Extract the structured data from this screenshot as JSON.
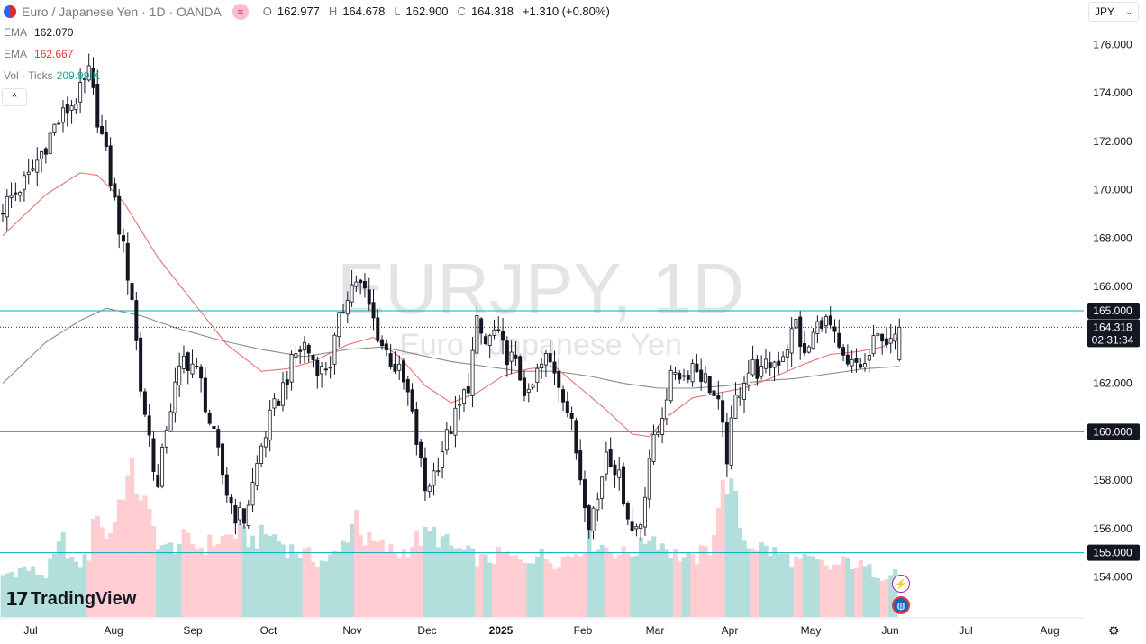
{
  "header": {
    "symbol_title": "Euro / Japanese Yen · 1D · OANDA",
    "badge_glyph": "≈",
    "ohlc": {
      "o_label": "O",
      "o_value": "162.977",
      "h_label": "H",
      "h_value": "164.678",
      "l_label": "L",
      "l_value": "162.900",
      "c_label": "C",
      "c_value": "164.318",
      "change": "+1.310 (+0.80%)"
    }
  },
  "indicators": [
    {
      "label": "EMA",
      "value": "162.070",
      "color": "#787b86"
    },
    {
      "label": "EMA",
      "value": "162.667",
      "color": "#e53935"
    },
    {
      "label": "Vol · Ticks",
      "value": "209.99 K",
      "color": "#26a69a"
    }
  ],
  "currency_button": {
    "label": "JPY",
    "chevron": "⌄"
  },
  "collapse_glyph": "^",
  "watermark": {
    "symbol": "EURJPY, 1D",
    "name": "Euro / Japanese Yen"
  },
  "logo": {
    "mark": "17",
    "text": "TradingView"
  },
  "settings_glyph": "⚙",
  "lightning_glyph": "⚡",
  "colors": {
    "up": "#131722",
    "down": "#131722",
    "ema_fast": "#e57373",
    "ema_slow": "#8d8d8d",
    "hline": "#00acc1",
    "vol_up": "#b2dfdb",
    "vol_down": "#ffcdd2",
    "price_tag_bg": "#131722",
    "level_tag_bg": "#131722"
  },
  "chart_data": {
    "type": "candlestick",
    "symbol": "EURJPY",
    "interval": "1D",
    "exchange": "OANDA",
    "y_axis": {
      "min": 153.2,
      "max": 177.0,
      "ticks": [
        "176.000",
        "174.000",
        "172.000",
        "170.000",
        "168.000",
        "166.000",
        "164.000",
        "162.000",
        "160.000",
        "158.000",
        "156.000",
        "154.000"
      ]
    },
    "x_axis": {
      "labels": [
        "Jul",
        "Aug",
        "Sep",
        "Oct",
        "Nov",
        "Dec",
        "2025",
        "Feb",
        "Mar",
        "Apr",
        "May",
        "Jun",
        "Jul",
        "Aug"
      ]
    },
    "horizontal_levels": [
      {
        "price": 165.0,
        "label": "165.000"
      },
      {
        "price": 160.0,
        "label": "160.000"
      },
      {
        "price": 155.0,
        "label": "155.000"
      }
    ],
    "last_price": {
      "value": "164.318",
      "countdown": "02:31:34"
    },
    "close_path": [
      [
        0,
        169.3
      ],
      [
        6,
        170.5
      ],
      [
        12,
        172.6
      ],
      [
        18,
        174.0
      ],
      [
        20,
        174.8
      ],
      [
        22,
        173.0
      ],
      [
        24,
        171.4
      ],
      [
        28,
        167.5
      ],
      [
        30,
        165.6
      ],
      [
        32,
        161.8
      ],
      [
        34,
        159.8
      ],
      [
        36,
        157.6
      ],
      [
        38,
        160.3
      ],
      [
        40,
        161.8
      ],
      [
        42,
        163.0
      ],
      [
        44,
        162.8
      ],
      [
        46,
        162.0
      ],
      [
        48,
        160.4
      ],
      [
        50,
        159.0
      ],
      [
        52,
        157.5
      ],
      [
        54,
        156.6
      ],
      [
        56,
        156.4
      ],
      [
        58,
        157.8
      ],
      [
        60,
        159.4
      ],
      [
        62,
        160.5
      ],
      [
        64,
        161.4
      ],
      [
        66,
        162.3
      ],
      [
        68,
        163.2
      ],
      [
        70,
        163.6
      ],
      [
        72,
        163.0
      ],
      [
        74,
        162.5
      ],
      [
        76,
        162.9
      ],
      [
        78,
        164.5
      ],
      [
        80,
        165.8
      ],
      [
        82,
        166.3
      ],
      [
        84,
        165.7
      ],
      [
        86,
        164.6
      ],
      [
        88,
        163.6
      ],
      [
        90,
        163.0
      ],
      [
        92,
        162.4
      ],
      [
        94,
        161.5
      ],
      [
        96,
        159.6
      ],
      [
        98,
        157.6
      ],
      [
        100,
        158.3
      ],
      [
        102,
        159.3
      ],
      [
        104,
        160.2
      ],
      [
        106,
        161.0
      ],
      [
        108,
        162.0
      ],
      [
        110,
        164.4
      ],
      [
        112,
        163.6
      ],
      [
        114,
        164.1
      ],
      [
        116,
        163.4
      ],
      [
        118,
        163.0
      ],
      [
        120,
        162.3
      ],
      [
        122,
        161.3
      ],
      [
        124,
        162.4
      ],
      [
        126,
        163.0
      ],
      [
        128,
        162.6
      ],
      [
        130,
        161.6
      ],
      [
        132,
        160.2
      ],
      [
        134,
        158.2
      ],
      [
        136,
        156.4
      ],
      [
        138,
        157.2
      ],
      [
        140,
        159.3
      ],
      [
        142,
        158.6
      ],
      [
        144,
        157.4
      ],
      [
        146,
        155.9
      ],
      [
        148,
        156.3
      ],
      [
        150,
        159.0
      ],
      [
        152,
        160.0
      ],
      [
        154,
        161.6
      ],
      [
        156,
        162.6
      ],
      [
        158,
        162.3
      ],
      [
        160,
        162.8
      ],
      [
        162,
        162.4
      ],
      [
        164,
        161.9
      ],
      [
        166,
        161.0
      ],
      [
        168,
        159.0
      ],
      [
        170,
        161.3
      ],
      [
        172,
        162.3
      ],
      [
        174,
        162.7
      ],
      [
        176,
        162.4
      ],
      [
        178,
        162.8
      ],
      [
        180,
        163.0
      ],
      [
        182,
        163.6
      ],
      [
        184,
        164.5
      ],
      [
        186,
        163.0
      ],
      [
        188,
        164.0
      ],
      [
        190,
        164.7
      ],
      [
        192,
        164.3
      ],
      [
        194,
        163.2
      ],
      [
        196,
        162.6
      ],
      [
        198,
        162.8
      ],
      [
        200,
        162.7
      ],
      [
        202,
        163.6
      ],
      [
        204,
        164.1
      ],
      [
        206,
        163.5
      ],
      [
        208,
        164.318
      ]
    ],
    "n_bars": 209,
    "ema_fast": [
      [
        0,
        168.1
      ],
      [
        10,
        169.8
      ],
      [
        18,
        170.7
      ],
      [
        22,
        170.6
      ],
      [
        28,
        169.5
      ],
      [
        36,
        167.2
      ],
      [
        44,
        165.4
      ],
      [
        52,
        163.6
      ],
      [
        60,
        162.5
      ],
      [
        66,
        162.6
      ],
      [
        72,
        162.9
      ],
      [
        80,
        163.6
      ],
      [
        86,
        163.9
      ],
      [
        92,
        163.1
      ],
      [
        98,
        161.9
      ],
      [
        104,
        161.2
      ],
      [
        110,
        161.6
      ],
      [
        116,
        162.3
      ],
      [
        122,
        162.6
      ],
      [
        128,
        162.7
      ],
      [
        134,
        161.8
      ],
      [
        140,
        160.9
      ],
      [
        146,
        159.9
      ],
      [
        150,
        159.8
      ],
      [
        154,
        160.6
      ],
      [
        160,
        161.4
      ],
      [
        166,
        161.6
      ],
      [
        172,
        161.8
      ],
      [
        178,
        162.2
      ],
      [
        186,
        162.8
      ],
      [
        192,
        163.2
      ],
      [
        198,
        163.3
      ],
      [
        204,
        163.5
      ],
      [
        208,
        163.9
      ]
    ],
    "ema_slow": [
      [
        0,
        162.0
      ],
      [
        10,
        163.7
      ],
      [
        18,
        164.6
      ],
      [
        24,
        165.1
      ],
      [
        32,
        164.8
      ],
      [
        40,
        164.3
      ],
      [
        50,
        163.8
      ],
      [
        60,
        163.4
      ],
      [
        70,
        163.1
      ],
      [
        80,
        163.4
      ],
      [
        88,
        163.5
      ],
      [
        96,
        163.2
      ],
      [
        104,
        162.9
      ],
      [
        112,
        162.7
      ],
      [
        120,
        162.5
      ],
      [
        128,
        162.5
      ],
      [
        136,
        162.3
      ],
      [
        144,
        162.0
      ],
      [
        152,
        161.8
      ],
      [
        160,
        161.8
      ],
      [
        168,
        161.9
      ],
      [
        176,
        162.1
      ],
      [
        184,
        162.2
      ],
      [
        192,
        162.4
      ],
      [
        200,
        162.6
      ],
      [
        208,
        162.7
      ]
    ],
    "volume_profile": [
      [
        0,
        0.3
      ],
      [
        5,
        0.35
      ],
      [
        10,
        0.3
      ],
      [
        14,
        0.55
      ],
      [
        17,
        0.35
      ],
      [
        20,
        0.45
      ],
      [
        22,
        0.8
      ],
      [
        24,
        0.55
      ],
      [
        26,
        0.7
      ],
      [
        28,
        0.95
      ],
      [
        30,
        1.0
      ],
      [
        32,
        0.9
      ],
      [
        34,
        0.7
      ],
      [
        36,
        0.55
      ],
      [
        38,
        0.48
      ],
      [
        42,
        0.55
      ],
      [
        46,
        0.5
      ],
      [
        50,
        0.55
      ],
      [
        54,
        0.6
      ],
      [
        58,
        0.55
      ],
      [
        62,
        0.6
      ],
      [
        66,
        0.5
      ],
      [
        70,
        0.45
      ],
      [
        74,
        0.4
      ],
      [
        78,
        0.45
      ],
      [
        82,
        0.75
      ],
      [
        84,
        0.55
      ],
      [
        88,
        0.5
      ],
      [
        92,
        0.45
      ],
      [
        96,
        0.55
      ],
      [
        100,
        0.6
      ],
      [
        104,
        0.5
      ],
      [
        108,
        0.45
      ],
      [
        112,
        0.4
      ],
      [
        116,
        0.45
      ],
      [
        120,
        0.4
      ],
      [
        124,
        0.45
      ],
      [
        128,
        0.4
      ],
      [
        132,
        0.45
      ],
      [
        136,
        0.55
      ],
      [
        140,
        0.5
      ],
      [
        144,
        0.45
      ],
      [
        148,
        0.5
      ],
      [
        150,
        0.6
      ],
      [
        152,
        0.55
      ],
      [
        156,
        0.45
      ],
      [
        160,
        0.4
      ],
      [
        164,
        0.5
      ],
      [
        166,
        0.8
      ],
      [
        168,
        1.0
      ],
      [
        170,
        0.8
      ],
      [
        172,
        0.55
      ],
      [
        176,
        0.5
      ],
      [
        180,
        0.45
      ],
      [
        184,
        0.4
      ],
      [
        188,
        0.4
      ],
      [
        192,
        0.35
      ],
      [
        196,
        0.4
      ],
      [
        200,
        0.35
      ],
      [
        204,
        0.3
      ],
      [
        208,
        0.35
      ]
    ]
  }
}
